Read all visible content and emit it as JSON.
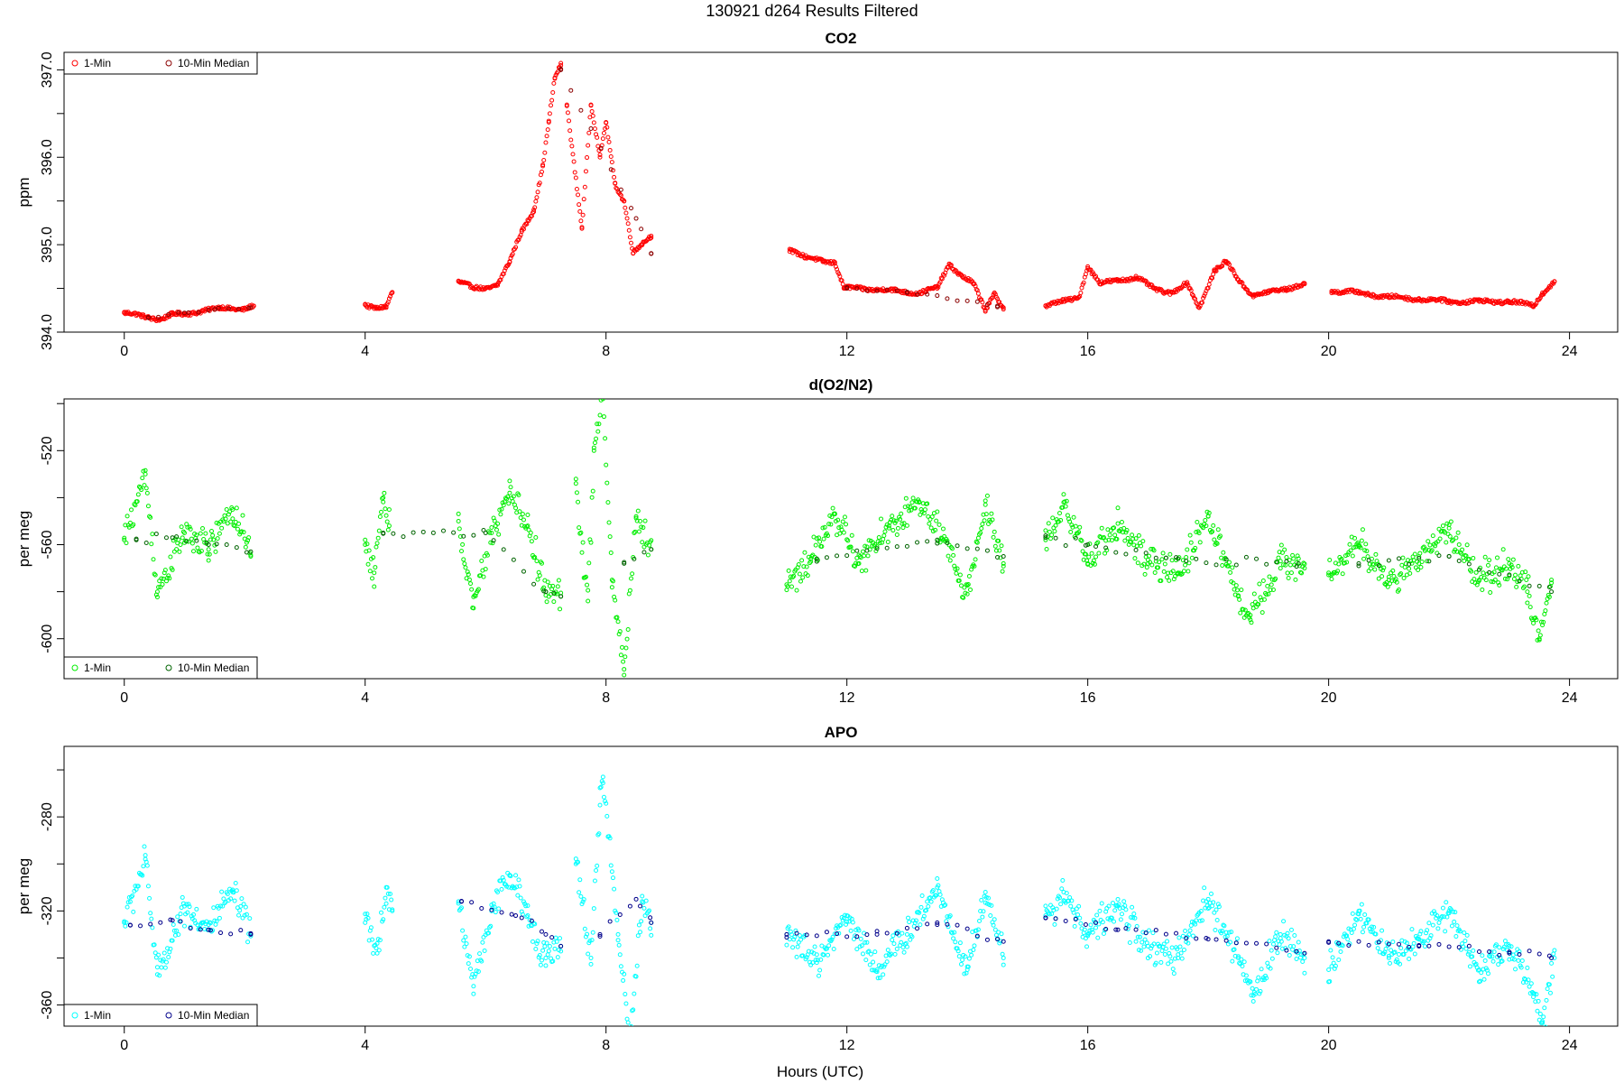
{
  "suptitle": "130921   d264   Results Filtered",
  "xlabel": "Hours (UTC)",
  "chart_data": [
    {
      "type": "scatter",
      "title": "CO2",
      "ylabel": "ppm",
      "xlim": [
        -1,
        24.8
      ],
      "ylim": [
        394,
        397.2
      ],
      "xticks": [
        0,
        4,
        8,
        12,
        16,
        20,
        24
      ],
      "yticks": [
        394.0,
        394.5,
        395.0,
        395.5,
        396.0,
        396.5,
        397.0
      ],
      "yticklabels": [
        "394.0",
        "",
        "395.0",
        "",
        "396.0",
        "",
        "397.0"
      ],
      "legend_position": "top-left",
      "series": [
        {
          "name": "1-Min",
          "color": "#ff0000",
          "segments": [
            {
              "x": [
                0,
                0.3,
                0.6,
                0.8,
                1.0,
                1.3,
                1.6,
                2.0,
                2.15
              ],
              "y": [
                394.22,
                394.18,
                394.15,
                394.2,
                394.2,
                394.25,
                394.27,
                394.27,
                394.3
              ]
            },
            {
              "x": [
                4.0,
                4.2,
                4.35,
                4.45
              ],
              "y": [
                394.32,
                394.27,
                394.28,
                394.45
              ]
            },
            {
              "x": [
                5.55,
                5.8,
                6.0,
                6.2,
                6.4,
                6.6,
                6.8,
                6.95,
                7.05,
                7.15,
                7.25
              ],
              "y": [
                394.58,
                394.5,
                394.5,
                394.55,
                394.8,
                395.15,
                395.4,
                395.9,
                396.4,
                396.9,
                397.05
              ]
            },
            {
              "x": [
                7.35,
                7.6,
                7.75,
                7.9,
                8.0,
                8.15,
                8.3,
                8.45,
                8.6,
                8.75
              ],
              "y": [
                396.6,
                395.2,
                396.6,
                396.0,
                396.4,
                395.7,
                395.5,
                394.9,
                395.0,
                395.1
              ]
            },
            {
              "x": [
                11.05,
                11.3,
                11.6,
                11.8,
                11.95,
                12.3,
                12.8,
                13.2,
                13.5,
                13.7,
                13.9,
                14.1,
                14.3,
                14.45,
                14.6
              ],
              "y": [
                394.95,
                394.85,
                394.82,
                394.8,
                394.5,
                394.5,
                394.47,
                394.45,
                394.5,
                394.78,
                394.65,
                394.55,
                394.25,
                394.45,
                394.28
              ]
            },
            {
              "x": [
                15.3,
                15.6,
                15.85,
                16.0,
                16.2,
                16.5,
                16.8,
                17.1,
                17.4,
                17.65,
                17.85,
                18.1,
                18.3,
                18.5,
                18.75,
                19.0,
                19.3,
                19.6
              ],
              "y": [
                394.3,
                394.35,
                394.4,
                394.75,
                394.55,
                394.6,
                394.62,
                394.5,
                394.45,
                394.55,
                394.28,
                394.7,
                394.8,
                394.6,
                394.42,
                394.45,
                394.5,
                394.55
              ]
            },
            {
              "x": [
                20.05,
                20.5,
                21.0,
                21.5,
                22.0,
                22.5,
                23.0,
                23.4,
                23.55,
                23.75
              ],
              "y": [
                394.47,
                394.45,
                394.4,
                394.38,
                394.35,
                394.35,
                394.35,
                394.3,
                394.45,
                394.58
              ]
            }
          ]
        },
        {
          "name": "10-Min Median",
          "color": "#8b0000",
          "segments": [
            {
              "x": [
                0.4,
                1.0,
                1.5,
                2.1
              ],
              "y": [
                394.17,
                394.22,
                394.26,
                394.28
              ]
            },
            {
              "x": [
                7.25,
                8.5,
                8.75
              ],
              "y": [
                397.0,
                395.3,
                394.9
              ]
            },
            {
              "x": [
                12.0,
                13.0,
                14.5
              ],
              "y": [
                394.5,
                394.46,
                394.3
              ]
            }
          ]
        }
      ]
    },
    {
      "type": "scatter",
      "title": "d(O2/N2)",
      "ylabel": "per meg",
      "xlim": [
        -1,
        24.8
      ],
      "ylim": [
        -617,
        -498
      ],
      "xticks": [
        0,
        4,
        8,
        12,
        16,
        20,
        24
      ],
      "yticks": [
        -600,
        -580,
        -560,
        -540,
        -520,
        -500
      ],
      "yticklabels": [
        "-600",
        "",
        "-560",
        "",
        "-520",
        ""
      ],
      "legend_position": "bottom-left",
      "series": [
        {
          "name": "1-Min",
          "color": "#00ee00",
          "segments": [
            {
              "x": [
                0,
                0.35,
                0.55,
                1.0,
                1.4,
                1.8,
                2.1
              ],
              "y": [
                -558,
                -530,
                -580,
                -555,
                -562,
                -545,
                -565
              ]
            },
            {
              "x": [
                4.0,
                4.15,
                4.3,
                4.4
              ],
              "y": [
                -560,
                -572,
                -540,
                -552
              ]
            },
            {
              "x": [
                5.55,
                5.8,
                6.1,
                6.4,
                6.7,
                7.0,
                7.25
              ],
              "y": [
                -550,
                -587,
                -555,
                -538,
                -552,
                -580,
                -582
              ]
            },
            {
              "x": [
                7.5,
                7.7,
                7.8,
                7.95,
                8.1,
                8.3,
                8.5,
                8.75
              ],
              "y": [
                -534,
                -584,
                -520,
                -498,
                -575,
                -613,
                -548,
                -562
              ]
            },
            {
              "x": [
                11.0,
                11.4,
                11.8,
                12.2,
                12.7,
                13.2,
                13.6,
                14.0,
                14.3,
                14.6
              ],
              "y": [
                -577,
                -566,
                -547,
                -568,
                -553,
                -542,
                -558,
                -581,
                -543,
                -568
              ]
            },
            {
              "x": [
                15.3,
                15.6,
                16.0,
                16.5,
                17.0,
                17.5,
                18.0,
                18.5,
                18.7,
                19.2,
                19.6
              ],
              "y": [
                -558,
                -542,
                -568,
                -551,
                -568,
                -572,
                -548,
                -582,
                -590,
                -567,
                -570
              ]
            },
            {
              "x": [
                20.0,
                20.5,
                21.0,
                21.5,
                22.0,
                22.5,
                23.0,
                23.3,
                23.5,
                23.7
              ],
              "y": [
                -572,
                -560,
                -575,
                -568,
                -553,
                -575,
                -568,
                -580,
                -600,
                -575
              ]
            }
          ]
        },
        {
          "name": "10-Min Median",
          "color": "#006400",
          "segments": [
            {
              "x": [
                0.2,
                0.8,
                1.4,
                2.1
              ],
              "y": [
                -558,
                -557,
                -560,
                -563
              ]
            },
            {
              "x": [
                4.3,
                6.0,
                7.0,
                7.25
              ],
              "y": [
                -555,
                -555,
                -580,
                -582
              ]
            },
            {
              "x": [
                8.3,
                8.75
              ],
              "y": [
                -568,
                -562
              ]
            },
            {
              "x": [
                11.5,
                13.5,
                14.6
              ],
              "y": [
                -566,
                -558,
                -565
              ]
            },
            {
              "x": [
                15.3,
                16.0,
                17.5,
                19.5
              ],
              "y": [
                -557,
                -560,
                -566,
                -568
              ]
            },
            {
              "x": [
                20.5,
                22.0,
                23.7
              ],
              "y": [
                -568,
                -565,
                -580
              ]
            }
          ]
        }
      ]
    },
    {
      "type": "scatter",
      "title": "APO",
      "ylabel": "per meg",
      "xlim": [
        -1,
        24.8
      ],
      "ylim": [
        -369,
        -250
      ],
      "xticks": [
        0,
        4,
        8,
        12,
        16,
        20,
        24
      ],
      "yticks": [
        -360,
        -340,
        -320,
        -300,
        -280,
        -260
      ],
      "yticklabels": [
        "-360",
        "",
        "-320",
        "",
        "-280",
        ""
      ],
      "legend_position": "bottom-left",
      "series": [
        {
          "name": "1-Min",
          "color": "#00ffff",
          "segments": [
            {
              "x": [
                0,
                0.35,
                0.55,
                1.0,
                1.4,
                1.8,
                2.1
              ],
              "y": [
                -325,
                -298,
                -347,
                -318,
                -328,
                -312,
                -330
              ]
            },
            {
              "x": [
                4.0,
                4.2,
                4.35,
                4.45
              ],
              "y": [
                -325,
                -338,
                -310,
                -320
              ]
            },
            {
              "x": [
                5.55,
                5.8,
                6.1,
                6.4,
                6.7,
                7.0,
                7.25
              ],
              "y": [
                -316,
                -352,
                -320,
                -305,
                -322,
                -340,
                -335
              ]
            },
            {
              "x": [
                7.5,
                7.75,
                7.9,
                7.95,
                8.2,
                8.4,
                8.6,
                8.75
              ],
              "y": [
                -300,
                -340,
                -275,
                -263,
                -330,
                -373,
                -316,
                -325
              ]
            },
            {
              "x": [
                11.0,
                11.5,
                12.0,
                12.5,
                13.0,
                13.5,
                14.0,
                14.3,
                14.6
              ],
              "y": [
                -330,
                -342,
                -322,
                -345,
                -330,
                -310,
                -345,
                -312,
                -340
              ]
            },
            {
              "x": [
                15.3,
                15.6,
                16.0,
                16.5,
                17.0,
                17.5,
                18.0,
                18.5,
                18.75,
                19.2,
                19.6
              ],
              "y": [
                -322,
                -312,
                -330,
                -318,
                -335,
                -340,
                -315,
                -340,
                -356,
                -330,
                -340
              ]
            },
            {
              "x": [
                20.0,
                20.5,
                21.0,
                21.5,
                22.0,
                22.5,
                23.0,
                23.4,
                23.55,
                23.75
              ],
              "y": [
                -345,
                -320,
                -340,
                -332,
                -320,
                -345,
                -335,
                -355,
                -367,
                -340
              ]
            }
          ]
        },
        {
          "name": "10-Min Median",
          "color": "#00008b",
          "segments": [
            {
              "x": [
                0.1,
                0.8,
                1.4,
                2.1
              ],
              "y": [
                -326,
                -324,
                -328,
                -330
              ]
            },
            {
              "x": [
                5.6,
                6.5,
                7.0,
                7.25
              ],
              "y": [
                -316,
                -322,
                -330,
                -335
              ]
            },
            {
              "x": [
                7.9,
                8.5,
                8.75
              ],
              "y": [
                -330,
                -315,
                -325
              ]
            },
            {
              "x": [
                11.0,
                12.5,
                13.5,
                14.6
              ],
              "y": [
                -330,
                -330,
                -325,
                -333
              ]
            },
            {
              "x": [
                15.3,
                16.5,
                18.0,
                19.6
              ],
              "y": [
                -323,
                -328,
                -332,
                -338
              ]
            },
            {
              "x": [
                20.0,
                21.5,
                23.0,
                23.7
              ],
              "y": [
                -333,
                -335,
                -338,
                -340
              ]
            }
          ]
        }
      ]
    }
  ]
}
